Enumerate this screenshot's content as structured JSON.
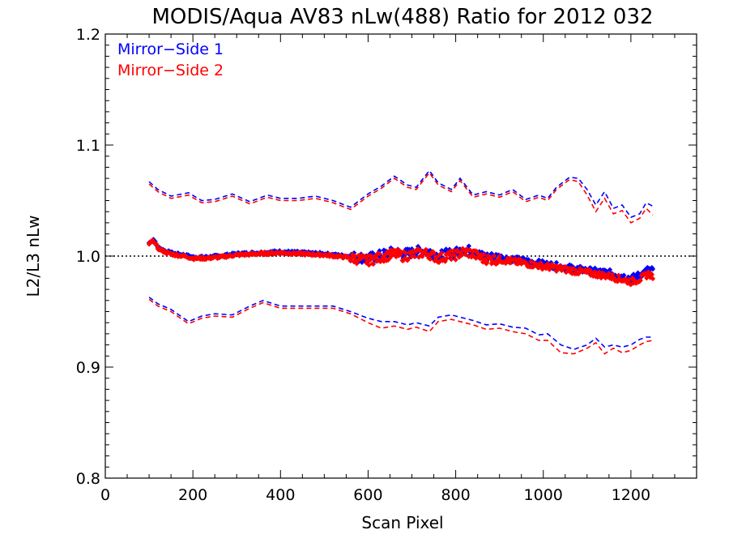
{
  "chart_data": {
    "type": "scatter",
    "title": "MODIS/Aqua AV83 nLw(488) Ratio for 2012 032",
    "xlabel": "Scan Pixel",
    "ylabel": "L2/L3 nLw",
    "xlim": [
      0,
      1350
    ],
    "ylim": [
      0.8,
      1.2
    ],
    "x_ticks": [
      0,
      200,
      400,
      600,
      800,
      1000,
      1200
    ],
    "x_tick_labels": [
      "0",
      "200",
      "400",
      "600",
      "800",
      "1000",
      "1200"
    ],
    "y_ticks": [
      0.8,
      0.9,
      1.0,
      1.1,
      1.2
    ],
    "y_tick_labels": [
      "0.8",
      "0.9",
      "1.0",
      "1.1",
      "1.2"
    ],
    "reference_line": 1.0,
    "legend_placement": "top-left",
    "legend": [
      {
        "label": "Mirror−Side 1",
        "color": "#0000ff"
      },
      {
        "label": "Mirror−Side 2",
        "color": "#ff0000"
      }
    ],
    "series": [
      {
        "name": "Mirror−Side 1",
        "color": "#0000ff",
        "ratio": {
          "x": [
            100,
            110,
            120,
            140,
            160,
            180,
            200,
            230,
            260,
            300,
            350,
            400,
            450,
            500,
            550,
            600,
            620,
            640,
            660,
            680,
            700,
            720,
            740,
            760,
            780,
            800,
            820,
            840,
            860,
            880,
            900,
            950,
            1000,
            1050,
            1100,
            1150,
            1200,
            1220,
            1240,
            1250
          ],
          "y": [
            1.012,
            1.015,
            1.008,
            1.004,
            1.002,
            1.001,
            0.999,
            0.999,
            1.0,
            1.002,
            1.003,
            1.004,
            1.003,
            1.002,
            1.0,
            0.998,
            1.0,
            1.002,
            1.004,
            1.002,
            1.003,
            1.005,
            1.004,
            1.0,
            1.002,
            1.003,
            1.006,
            1.004,
            1.0,
            0.999,
            0.999,
            0.996,
            0.993,
            0.99,
            0.987,
            0.985,
            0.98,
            0.983,
            0.988,
            0.987
          ]
        },
        "upper": {
          "x": [
            100,
            120,
            150,
            190,
            220,
            250,
            290,
            330,
            370,
            400,
            440,
            480,
            520,
            560,
            600,
            630,
            660,
            690,
            710,
            740,
            760,
            790,
            810,
            840,
            870,
            900,
            930,
            960,
            990,
            1010,
            1030,
            1060,
            1080,
            1100,
            1120,
            1140,
            1160,
            1180,
            1200,
            1220,
            1235,
            1250
          ],
          "y": [
            1.067,
            1.06,
            1.054,
            1.057,
            1.05,
            1.051,
            1.056,
            1.049,
            1.055,
            1.052,
            1.052,
            1.054,
            1.05,
            1.044,
            1.056,
            1.063,
            1.072,
            1.064,
            1.062,
            1.077,
            1.066,
            1.06,
            1.07,
            1.055,
            1.058,
            1.055,
            1.06,
            1.051,
            1.055,
            1.052,
            1.062,
            1.071,
            1.07,
            1.06,
            1.046,
            1.058,
            1.043,
            1.046,
            1.035,
            1.038,
            1.048,
            1.045
          ]
        },
        "lower": {
          "x": [
            100,
            120,
            150,
            190,
            220,
            250,
            290,
            330,
            360,
            400,
            440,
            480,
            520,
            560,
            600,
            630,
            660,
            690,
            710,
            740,
            760,
            790,
            810,
            840,
            870,
            900,
            930,
            960,
            990,
            1010,
            1040,
            1070,
            1100,
            1120,
            1140,
            1160,
            1180,
            1200,
            1220,
            1235,
            1250
          ],
          "y": [
            0.963,
            0.957,
            0.952,
            0.941,
            0.946,
            0.948,
            0.947,
            0.955,
            0.96,
            0.955,
            0.955,
            0.955,
            0.955,
            0.95,
            0.944,
            0.941,
            0.941,
            0.938,
            0.94,
            0.937,
            0.945,
            0.947,
            0.945,
            0.942,
            0.938,
            0.939,
            0.936,
            0.935,
            0.929,
            0.93,
            0.92,
            0.916,
            0.92,
            0.926,
            0.918,
            0.92,
            0.918,
            0.92,
            0.925,
            0.927,
            0.927
          ]
        }
      },
      {
        "name": "Mirror−Side 2",
        "color": "#ff0000",
        "ratio": {
          "x": [
            100,
            110,
            120,
            140,
            160,
            180,
            200,
            230,
            260,
            300,
            350,
            400,
            450,
            500,
            550,
            600,
            620,
            640,
            660,
            680,
            700,
            720,
            740,
            760,
            780,
            800,
            820,
            840,
            860,
            880,
            900,
            950,
            1000,
            1050,
            1100,
            1150,
            1200,
            1220,
            1240,
            1250
          ],
          "y": [
            1.011,
            1.014,
            1.007,
            1.003,
            1.001,
            1.0,
            0.998,
            0.998,
            0.999,
            1.001,
            1.002,
            1.003,
            1.002,
            1.001,
            0.999,
            0.996,
            0.998,
            1.0,
            1.002,
            1.0,
            1.001,
            1.003,
            1.002,
            0.998,
            1.0,
            1.001,
            1.004,
            1.002,
            0.998,
            0.997,
            0.997,
            0.994,
            0.991,
            0.988,
            0.985,
            0.982,
            0.977,
            0.979,
            0.984,
            0.982
          ]
        },
        "upper": {
          "x": [
            100,
            120,
            150,
            190,
            220,
            250,
            290,
            330,
            370,
            400,
            440,
            480,
            520,
            560,
            600,
            630,
            660,
            690,
            710,
            740,
            760,
            790,
            810,
            840,
            870,
            900,
            930,
            960,
            990,
            1010,
            1030,
            1060,
            1080,
            1100,
            1120,
            1140,
            1160,
            1180,
            1200,
            1220,
            1235,
            1250
          ],
          "y": [
            1.065,
            1.058,
            1.052,
            1.055,
            1.048,
            1.049,
            1.054,
            1.047,
            1.053,
            1.05,
            1.05,
            1.052,
            1.048,
            1.042,
            1.054,
            1.061,
            1.07,
            1.062,
            1.06,
            1.075,
            1.064,
            1.058,
            1.068,
            1.053,
            1.056,
            1.053,
            1.058,
            1.049,
            1.053,
            1.05,
            1.06,
            1.069,
            1.067,
            1.055,
            1.04,
            1.052,
            1.038,
            1.041,
            1.03,
            1.034,
            1.043,
            1.037
          ]
        },
        "lower": {
          "x": [
            100,
            120,
            150,
            190,
            220,
            250,
            290,
            330,
            360,
            400,
            440,
            480,
            520,
            560,
            600,
            630,
            660,
            690,
            710,
            740,
            760,
            790,
            810,
            840,
            870,
            900,
            930,
            960,
            990,
            1010,
            1040,
            1070,
            1100,
            1120,
            1140,
            1160,
            1180,
            1200,
            1220,
            1235,
            1250
          ],
          "y": [
            0.961,
            0.955,
            0.95,
            0.939,
            0.944,
            0.946,
            0.945,
            0.953,
            0.958,
            0.953,
            0.953,
            0.953,
            0.953,
            0.948,
            0.94,
            0.935,
            0.937,
            0.934,
            0.936,
            0.932,
            0.941,
            0.943,
            0.941,
            0.938,
            0.934,
            0.935,
            0.932,
            0.93,
            0.924,
            0.924,
            0.913,
            0.912,
            0.917,
            0.922,
            0.912,
            0.917,
            0.913,
            0.915,
            0.92,
            0.923,
            0.924
          ]
        }
      }
    ]
  }
}
